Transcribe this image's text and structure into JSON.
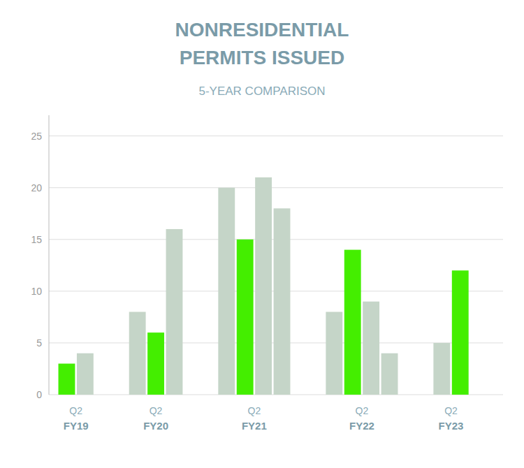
{
  "chart_data": {
    "type": "bar",
    "title": [
      "NONRESIDENTIAL",
      "PERMITS ISSUED"
    ],
    "subtitle": "5-YEAR COMPARISON",
    "categories": [
      "FY19",
      "FY20",
      "FY21",
      "FY22",
      "FY23"
    ],
    "quarters": [
      "Q2",
      "Q2",
      "Q2",
      "Q2",
      "Q2"
    ],
    "values": [
      [
        3,
        4
      ],
      [
        8,
        6,
        16
      ],
      [
        20,
        15,
        21,
        18
      ],
      [
        8,
        14,
        9,
        4
      ],
      [
        5,
        12
      ]
    ],
    "colors": [
      [
        "#44ee00",
        "#c5d5c8"
      ],
      [
        "#c5d5c8",
        "#44ee00",
        "#c5d5c8"
      ],
      [
        "#c5d5c8",
        "#44ee00",
        "#c5d5c8",
        "#c5d5c8"
      ],
      [
        "#c5d5c8",
        "#44ee00",
        "#c5d5c8",
        "#c5d5c8"
      ],
      [
        "#c5d5c8",
        "#44ee00"
      ]
    ],
    "ylim": [
      0,
      27
    ],
    "yticks": [
      0,
      5,
      10,
      15,
      20,
      25
    ],
    "grid": true,
    "tick_labels": "y"
  }
}
